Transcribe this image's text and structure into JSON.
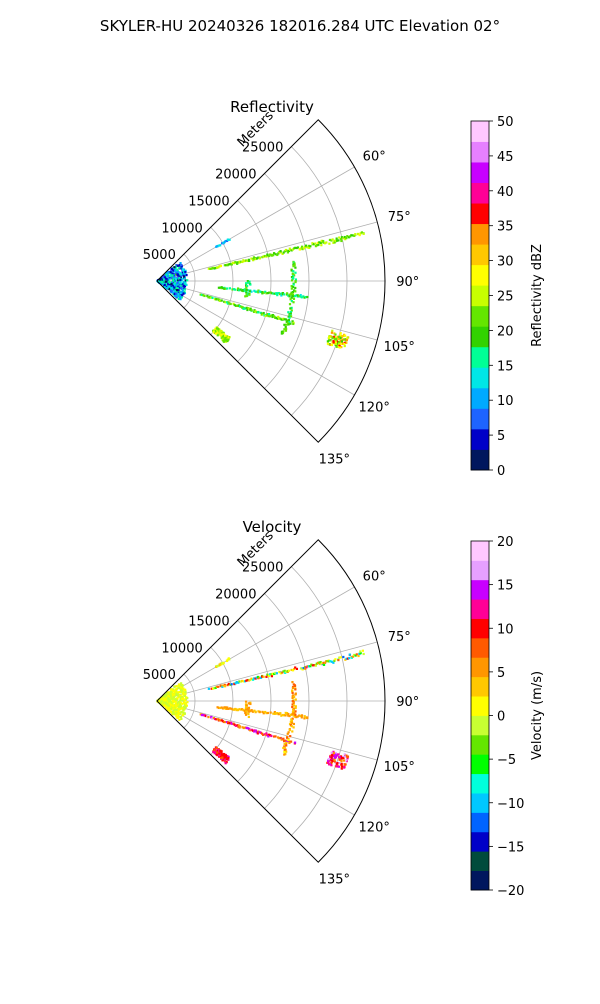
{
  "figure": {
    "title": "SKYLER-HU  20240326  182016.284 UTC Elevation 02°"
  },
  "chart_data": [
    {
      "type": "scatter",
      "subtype": "polar-sector-ppi",
      "title": "Reflectivity",
      "radial_label": "Meters",
      "radial_ticks": [
        "5000",
        "10000",
        "15000",
        "20000",
        "25000"
      ],
      "radial_tick_values": [
        5000,
        10000,
        15000,
        20000,
        25000
      ],
      "rlim": [
        0,
        30000
      ],
      "angle_ticks": [
        "60°",
        "75°",
        "90°",
        "105°",
        "120°",
        "135°"
      ],
      "angle_tick_values": [
        60,
        75,
        90,
        105,
        120,
        135
      ],
      "theta_range_deg": [
        45,
        135
      ],
      "grid": true,
      "colorbar": {
        "label": "Reflectivity dBZ",
        "range": [
          0,
          50
        ],
        "ticks": [
          "0",
          "5",
          "10",
          "15",
          "20",
          "25",
          "30",
          "35",
          "40",
          "45",
          "50"
        ],
        "colors": [
          "#00175e",
          "#0000c8",
          "#1e64ff",
          "#00aaff",
          "#00e6e6",
          "#00ff96",
          "#32d200",
          "#64e600",
          "#c8ff00",
          "#ffff00",
          "#ffc800",
          "#ff9600",
          "#ff0000",
          "#ff0096",
          "#c800ff",
          "#e680ff",
          "#ffc8ff"
        ]
      },
      "echo_features": [
        {
          "name": "near-field clutter",
          "theta_range": [
            50,
            130
          ],
          "r_range": [
            0,
            4000
          ],
          "value_range": [
            2,
            18
          ]
        },
        {
          "name": "ray 77",
          "theta": 77,
          "r_range": [
            7000,
            28000
          ],
          "value_range": [
            18,
            27
          ]
        },
        {
          "name": "ray 96",
          "theta": 96,
          "r_range": [
            8000,
            20000
          ],
          "value_range": [
            14,
            22
          ]
        },
        {
          "name": "ray 107",
          "theta": 107,
          "r_range": [
            6000,
            19000
          ],
          "value_range": [
            16,
            24
          ]
        },
        {
          "name": "arc 18000",
          "r": 18000,
          "theta_range": [
            82,
            113
          ],
          "value_range": [
            15,
            23
          ]
        },
        {
          "name": "arc 12000",
          "r": 12000,
          "theta_range": [
            90,
            100
          ],
          "value_range": [
            14,
            22
          ]
        },
        {
          "name": "cluster 25000",
          "theta": 108,
          "r": 25000,
          "value_range": [
            18,
            37
          ]
        },
        {
          "name": "cluster 11000",
          "theta": 130,
          "r": 11000,
          "value_range": [
            20,
            28
          ]
        },
        {
          "name": "scatter 10000",
          "theta": 60,
          "r_range": [
            9000,
            11000
          ],
          "value_range": [
            8,
            14
          ]
        }
      ]
    },
    {
      "type": "scatter",
      "subtype": "polar-sector-ppi",
      "title": "Velocity",
      "radial_label": "Meters",
      "radial_ticks": [
        "5000",
        "10000",
        "15000",
        "20000",
        "25000"
      ],
      "radial_tick_values": [
        5000,
        10000,
        15000,
        20000,
        25000
      ],
      "rlim": [
        0,
        30000
      ],
      "angle_ticks": [
        "60°",
        "75°",
        "90°",
        "105°",
        "120°",
        "135°"
      ],
      "angle_tick_values": [
        60,
        75,
        90,
        105,
        120,
        135
      ],
      "theta_range_deg": [
        45,
        135
      ],
      "grid": true,
      "colorbar": {
        "label": "Velocity (m/s)",
        "range": [
          -20,
          20
        ],
        "ticks": [
          "−20",
          "−15",
          "−10",
          "−5",
          "0",
          "5",
          "10",
          "15",
          "20"
        ],
        "colors": [
          "#00175e",
          "#004b3c",
          "#0000c8",
          "#0064ff",
          "#00c8ff",
          "#00ffdc",
          "#00ff00",
          "#64e600",
          "#c8ff32",
          "#ffff00",
          "#ffc800",
          "#ff9600",
          "#ff5a00",
          "#ff0000",
          "#ff0096",
          "#c800ff",
          "#e6a0ff",
          "#ffc8ff"
        ]
      },
      "echo_features": [
        {
          "name": "near-field clutter",
          "theta_range": [
            50,
            130
          ],
          "r_range": [
            0,
            4000
          ],
          "value_range": [
            -2,
            2
          ]
        },
        {
          "name": "ray 77",
          "theta": 77,
          "r_range": [
            7000,
            28000
          ],
          "value_range": [
            -12,
            12
          ]
        },
        {
          "name": "ray 96",
          "theta": 96,
          "r_range": [
            8000,
            20000
          ],
          "value_range": [
            3,
            6
          ]
        },
        {
          "name": "ray 107",
          "theta": 107,
          "r_range": [
            6000,
            19000
          ],
          "value_range": [
            5,
            16
          ]
        },
        {
          "name": "arc 18000",
          "r": 18000,
          "theta_range": [
            82,
            113
          ],
          "value_range": [
            2,
            8
          ]
        },
        {
          "name": "arc 12000",
          "r": 12000,
          "theta_range": [
            90,
            100
          ],
          "value_range": [
            3,
            6
          ]
        },
        {
          "name": "cluster 25000",
          "theta": 108,
          "r": 25000,
          "value_range": [
            5,
            18
          ]
        },
        {
          "name": "cluster 11000",
          "theta": 130,
          "r": 11000,
          "value_range": [
            8,
            14
          ]
        },
        {
          "name": "scatter 10000",
          "theta": 60,
          "r_range": [
            9000,
            11000
          ],
          "value_range": [
            -1,
            3
          ]
        }
      ]
    }
  ]
}
